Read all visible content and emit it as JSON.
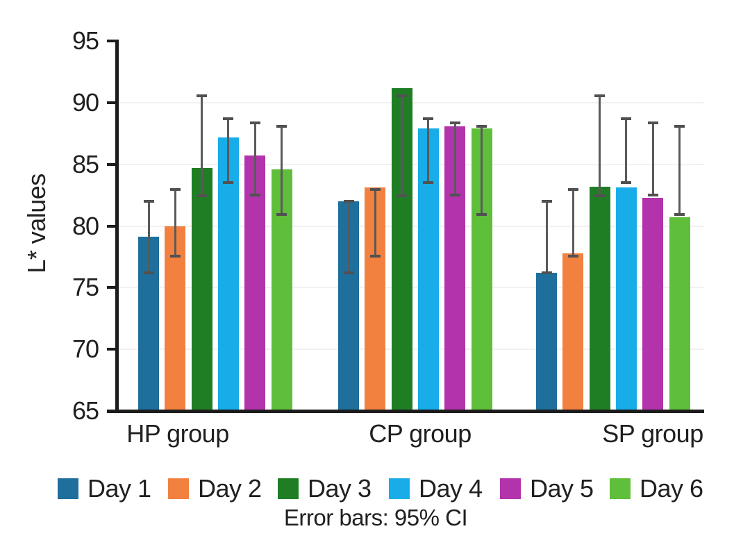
{
  "chart_data": {
    "type": "bar",
    "title": "",
    "ylabel": "L* values",
    "xlabel": "",
    "ylim": [
      65,
      95
    ],
    "yticks": [
      65,
      70,
      75,
      80,
      85,
      90,
      95
    ],
    "grid": true,
    "legend_position": "bottom",
    "categories": [
      "HP group",
      "CP group",
      "SP group"
    ],
    "series": [
      {
        "name": "Day 1",
        "color": "#1e6f9c",
        "values": [
          79.1,
          82.0,
          76.2
        ],
        "ci_low": [
          76.2,
          76.2,
          76.2
        ],
        "ci_high": [
          82.0,
          82.0,
          82.0
        ]
      },
      {
        "name": "Day 2",
        "color": "#f28140",
        "values": [
          80.0,
          83.1,
          77.8
        ],
        "ci_low": [
          77.5,
          77.5,
          77.5
        ],
        "ci_high": [
          83.0,
          83.0,
          83.0
        ]
      },
      {
        "name": "Day 3",
        "color": "#1f7e24",
        "values": [
          84.7,
          91.2,
          83.2
        ],
        "ci_low": [
          82.4,
          82.4,
          82.4
        ],
        "ci_high": [
          90.6,
          90.6,
          90.6
        ]
      },
      {
        "name": "Day 4",
        "color": "#18ade8",
        "values": [
          87.2,
          87.9,
          83.1
        ],
        "ci_low": [
          83.5,
          83.5,
          83.5
        ],
        "ci_high": [
          88.7,
          88.7,
          88.7
        ]
      },
      {
        "name": "Day 5",
        "color": "#b233ab",
        "values": [
          85.7,
          88.1,
          82.3
        ],
        "ci_low": [
          82.5,
          82.5,
          82.5
        ],
        "ci_high": [
          88.4,
          88.4,
          88.4
        ]
      },
      {
        "name": "Day 6",
        "color": "#5fbe3a",
        "values": [
          84.6,
          87.9,
          80.7
        ],
        "ci_low": [
          80.9,
          80.9,
          80.9
        ],
        "ci_high": [
          88.1,
          88.1,
          88.1
        ]
      }
    ],
    "note": "Error bars: 95% CI",
    "colors": {
      "axis": "#1c1c1c",
      "error_bar": "#5a5a5a",
      "gridline": "#f4f0f1",
      "text": "#202020",
      "background": "#ffffff"
    }
  }
}
